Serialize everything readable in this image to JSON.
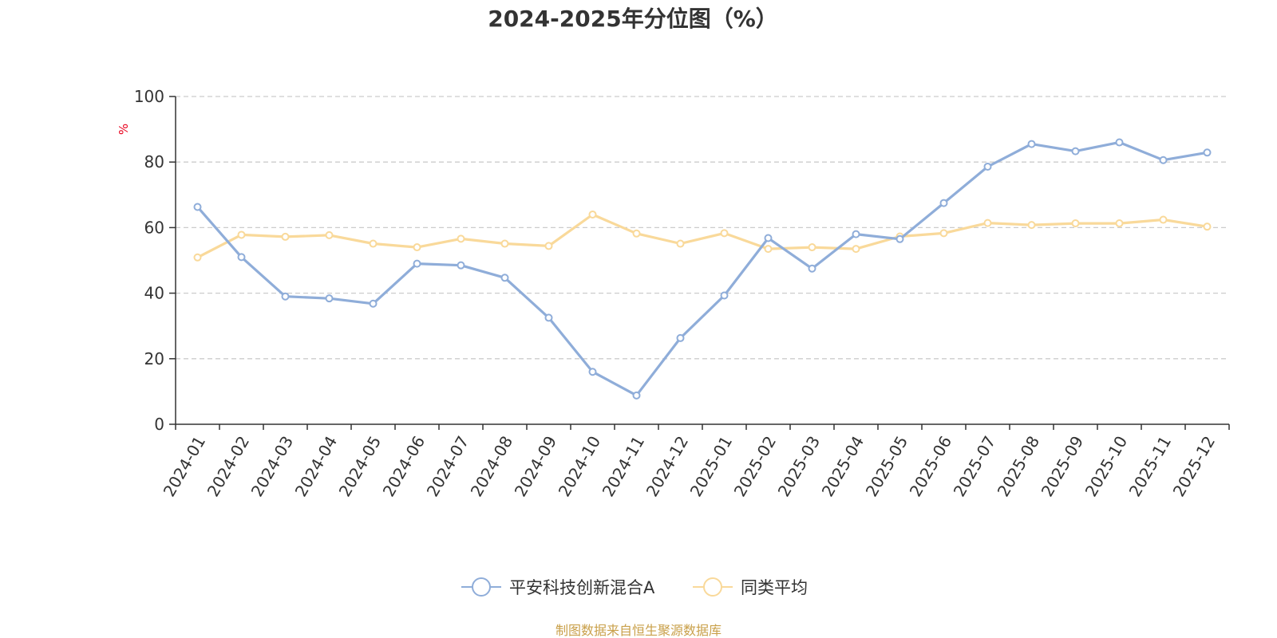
{
  "chart_data": {
    "type": "line",
    "title": "2024-2025年分位图（%）",
    "ylabel": "%",
    "xlabel": "",
    "ylim": [
      0,
      100
    ],
    "yticks": [
      0,
      20,
      40,
      60,
      80,
      100
    ],
    "grid": true,
    "legend_position": "bottom-center",
    "categories": [
      "2024-01",
      "2024-02",
      "2024-03",
      "2024-04",
      "2024-05",
      "2024-06",
      "2024-07",
      "2024-08",
      "2024-09",
      "2024-10",
      "2024-11",
      "2024-12",
      "2025-01",
      "2025-02",
      "2025-03",
      "2025-04",
      "2025-05",
      "2025-06",
      "2025-07",
      "2025-08",
      "2025-09",
      "2025-10",
      "2025-11",
      "2025-12"
    ],
    "series": [
      {
        "name": "平安科技创新混合A",
        "color": "#8fadd9",
        "values": [
          66.3,
          51,
          39,
          38.4,
          36.8,
          49,
          48.5,
          44.7,
          32.5,
          16,
          8.8,
          26.3,
          39.3,
          56.8,
          47.5,
          58,
          56.5,
          67.5,
          78.6,
          85.5,
          83.3,
          86,
          80.6,
          82.9
        ]
      },
      {
        "name": "同类平均",
        "color": "#f9d99a",
        "values": [
          50.9,
          57.8,
          57.2,
          57.7,
          55.1,
          54,
          56.6,
          55.1,
          54.4,
          64,
          58.2,
          55.1,
          58.3,
          53.5,
          54,
          53.5,
          57.3,
          58.3,
          61.4,
          60.8,
          61.3,
          61.3,
          62.4,
          60.3
        ]
      }
    ]
  },
  "colors": {
    "title": "#333333",
    "axis": "#333333",
    "grid": "#cccccc",
    "unit": "#e8001c",
    "source": "#c9a04a"
  },
  "source_text": "制图数据来自恒生聚源数据库"
}
